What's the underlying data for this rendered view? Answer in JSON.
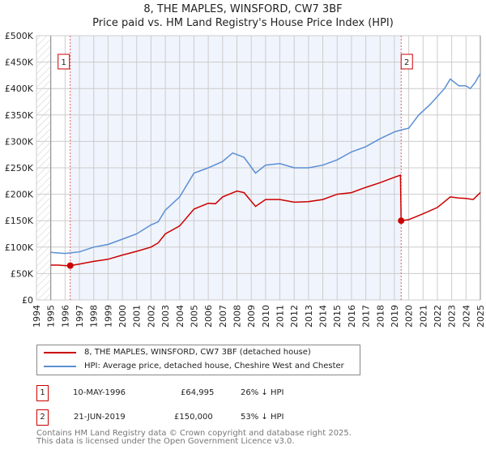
{
  "title": "8, THE MAPLES, WINSFORD, CW7 3BF",
  "subtitle": "Price paid vs. HM Land Registry's House Price Index (HPI)",
  "chart_data": {
    "type": "line",
    "title": "8, THE MAPLES, WINSFORD, CW7 3BF",
    "subtitle": "Price paid vs. HM Land Registry's House Price Index (HPI)",
    "xlim": [
      1994,
      2025
    ],
    "ylim": [
      0,
      500000
    ],
    "x_ticks": [
      "1994",
      "1995",
      "1996",
      "1997",
      "1998",
      "1999",
      "2000",
      "2001",
      "2002",
      "2003",
      "2004",
      "2005",
      "2006",
      "2007",
      "2008",
      "2009",
      "2010",
      "2011",
      "2012",
      "2013",
      "2014",
      "2015",
      "2016",
      "2017",
      "2018",
      "2019",
      "2020",
      "2021",
      "2022",
      "2023",
      "2024",
      "2025"
    ],
    "y_ticks": [
      {
        "v": 0,
        "label": "£0"
      },
      {
        "v": 50000,
        "label": "£50K"
      },
      {
        "v": 100000,
        "label": "£100K"
      },
      {
        "v": 150000,
        "label": "£150K"
      },
      {
        "v": 200000,
        "label": "£200K"
      },
      {
        "v": 250000,
        "label": "£250K"
      },
      {
        "v": 300000,
        "label": "£300K"
      },
      {
        "v": 350000,
        "label": "£350K"
      },
      {
        "v": 400000,
        "label": "£400K"
      },
      {
        "v": 450000,
        "label": "£450K"
      },
      {
        "v": 500000,
        "label": "£500K"
      }
    ],
    "grid": true,
    "shaded_range": [
      1996.36,
      2019.47
    ],
    "series": [
      {
        "name": "8, THE MAPLES, WINSFORD, CW7 3BF (detached house)",
        "color": "#cc0000",
        "x": [
          1995,
          1995.5,
          1996,
          1996.36,
          1997,
          1998,
          1999,
          2000,
          2001,
          2002,
          2002.5,
          2003,
          2004,
          2005,
          2006,
          2006.5,
          2007,
          2008,
          2008.5,
          2009.3,
          2010,
          2011,
          2012,
          2013,
          2014,
          2015,
          2016,
          2017,
          2018,
          2019,
          2019.42,
          2019.47,
          2020,
          2021,
          2022,
          2022.9,
          2023.5,
          2024,
          2024.5,
          2025
        ],
        "y": [
          66000,
          66000,
          65000,
          64995,
          68000,
          73000,
          77000,
          85000,
          92000,
          100000,
          108000,
          125000,
          140000,
          172000,
          183000,
          182000,
          195000,
          206000,
          203000,
          177000,
          190000,
          190000,
          185000,
          186000,
          190000,
          200000,
          203000,
          213000,
          222000,
          232000,
          236000,
          150000,
          152000,
          163000,
          175000,
          195000,
          193000,
          192000,
          190000,
          203000
        ]
      },
      {
        "name": "HPI: Average price, detached house, Cheshire West and Chester",
        "color": "#5b8fd4",
        "x": [
          1995,
          1995.5,
          1996,
          1997,
          1998,
          1999,
          2000,
          2001,
          2002,
          2002.5,
          2003,
          2004,
          2005,
          2006,
          2007,
          2007.7,
          2008.5,
          2009.3,
          2010,
          2011,
          2012,
          2013,
          2014,
          2015,
          2016,
          2017,
          2018,
          2019,
          2019.5,
          2020,
          2020.7,
          2021.5,
          2022.5,
          2022.9,
          2023.5,
          2024,
          2024.3,
          2024.6,
          2025
        ],
        "y": [
          90000,
          89000,
          88000,
          91000,
          100000,
          105000,
          115000,
          125000,
          142000,
          148000,
          170000,
          195000,
          240000,
          250000,
          262000,
          278000,
          270000,
          240000,
          255000,
          258000,
          250000,
          250000,
          255000,
          265000,
          280000,
          290000,
          305000,
          318000,
          322000,
          325000,
          350000,
          370000,
          400000,
          418000,
          405000,
          405000,
          400000,
          410000,
          428000
        ]
      }
    ],
    "annotations": [
      {
        "label": "1",
        "x": 1996.36,
        "y": 64995
      },
      {
        "label": "2",
        "x": 2019.47,
        "y": 150000
      }
    ],
    "legend": "below"
  },
  "legend": {
    "items": [
      {
        "label": "8, THE MAPLES, WINSFORD, CW7 3BF (detached house)",
        "color": "#cc0000"
      },
      {
        "label": "HPI: Average price, detached house, Cheshire West and Chester",
        "color": "#5b8fd4"
      }
    ]
  },
  "transactions": [
    {
      "num": "1",
      "date": "10-MAY-1996",
      "price": "£64,995",
      "hpi": "26% ↓ HPI"
    },
    {
      "num": "2",
      "date": "21-JUN-2019",
      "price": "£150,000",
      "hpi": "53% ↓ HPI"
    }
  ],
  "footer": {
    "line1": "Contains HM Land Registry data © Crown copyright and database right 2025.",
    "line2": "This data is licensed under the Open Government Licence v3.0."
  }
}
